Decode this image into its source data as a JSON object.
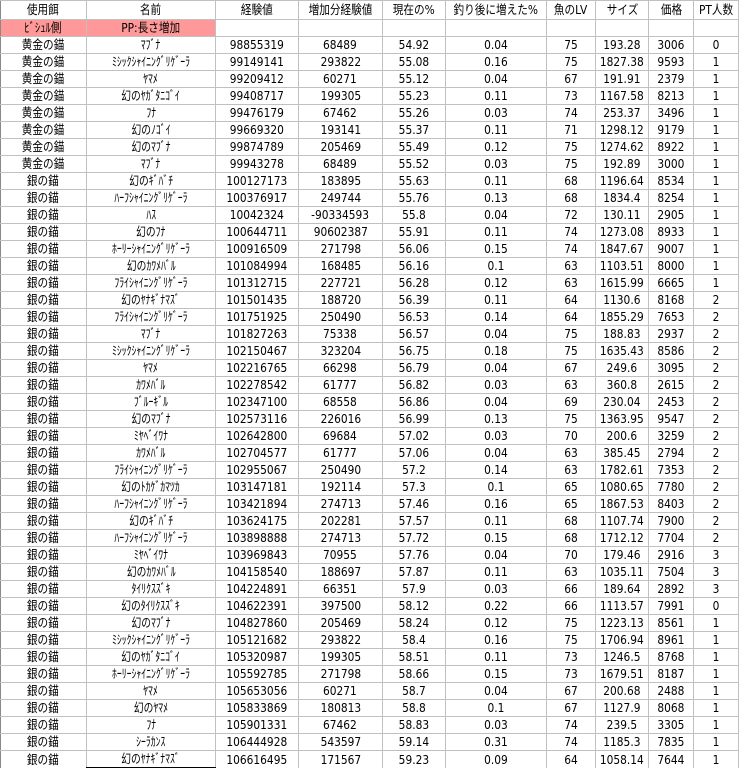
{
  "headers": [
    "使用餌",
    "名前",
    "経験値",
    "増加分経験値",
    "現在の%",
    "釣り後に増えた%",
    "魚のLV",
    "サイズ",
    "価格",
    "PT人数"
  ],
  "note_row": [
    "ﾋﾞｼｭﾙ側",
    "PP:長さ増加"
  ],
  "highlight_color": "#ff9999",
  "rows": [
    [
      "黄金の錨",
      "ﾏﾌﾞﾅ",
      "98855319",
      "68489",
      "54.92",
      "0.04",
      "75",
      "193.28",
      "3006",
      "0"
    ],
    [
      "黄金の錨",
      "ﾐｼｯｸｼｬｲﾆﾝｸﾞﾘｹﾞｰﾗ",
      "99149141",
      "293822",
      "55.08",
      "0.16",
      "75",
      "1827.38",
      "9593",
      "1"
    ],
    [
      "黄金の錨",
      "ﾔﾏﾒ",
      "99209412",
      "60271",
      "55.12",
      "0.04",
      "67",
      "191.91",
      "2379",
      "1"
    ],
    [
      "黄金の錨",
      "幻のﾔｶﾞﾀﾆｺﾞｲ",
      "99408717",
      "199305",
      "55.23",
      "0.11",
      "73",
      "1167.58",
      "8213",
      "1"
    ],
    [
      "黄金の錨",
      "ﾌﾅ",
      "99476179",
      "67462",
      "55.26",
      "0.03",
      "74",
      "253.37",
      "3496",
      "1"
    ],
    [
      "黄金の錨",
      "幻のﾉｺﾞｲ",
      "99669320",
      "193141",
      "55.37",
      "0.11",
      "71",
      "1298.12",
      "9179",
      "1"
    ],
    [
      "黄金の錨",
      "幻のﾏﾌﾞﾅ",
      "99874789",
      "205469",
      "55.49",
      "0.12",
      "75",
      "1274.62",
      "8922",
      "1"
    ],
    [
      "黄金の錨",
      "ﾏﾌﾞﾅ",
      "99943278",
      "68489",
      "55.52",
      "0.03",
      "75",
      "192.89",
      "3000",
      "1"
    ],
    [
      "銀の錨",
      "幻のｷﾞﾊﾞﾁ",
      "100127173",
      "183895",
      "55.63",
      "0.11",
      "68",
      "1196.64",
      "8534",
      "1"
    ],
    [
      "銀の錨",
      "ﾊｰﾌｼｬｲﾆﾝｸﾞﾘｹﾞｰﾗ",
      "100376917",
      "249744",
      "55.76",
      "0.13",
      "68",
      "1834.4",
      "8254",
      "1"
    ],
    [
      "銀の錨",
      "ﾊｽ",
      "10042324",
      "-90334593",
      "55.8",
      "0.04",
      "72",
      "130.11",
      "2905",
      "1"
    ],
    [
      "銀の錨",
      "幻のﾌﾅ",
      "100644711",
      "90602387",
      "55.91",
      "0.11",
      "74",
      "1273.08",
      "8933",
      "1"
    ],
    [
      "銀の錨",
      "ﾎｰﾘｰｼｬｲﾆﾝｸﾞﾘｹﾞｰﾗ",
      "100916509",
      "271798",
      "56.06",
      "0.15",
      "74",
      "1847.67",
      "9007",
      "1"
    ],
    [
      "銀の錨",
      "幻のｶﾜﾒﾊﾞﾙ",
      "101084994",
      "168485",
      "56.16",
      "0.1",
      "63",
      "1103.51",
      "8000",
      "1"
    ],
    [
      "銀の錨",
      "ﾌﾗｲｼｬｲﾆﾝｸﾞﾘｹﾞｰﾗ",
      "101312715",
      "227721",
      "56.28",
      "0.12",
      "63",
      "1615.99",
      "6665",
      "1"
    ],
    [
      "銀の錨",
      "幻のﾔﾅｷﾞﾅﾏｽﾞ",
      "101501435",
      "188720",
      "56.39",
      "0.11",
      "64",
      "1130.6",
      "8168",
      "2"
    ],
    [
      "銀の錨",
      "ﾌﾗｲｼｬｲﾆﾝｸﾞﾘｹﾞｰﾗ",
      "101751925",
      "250490",
      "56.53",
      "0.14",
      "64",
      "1855.29",
      "7653",
      "2"
    ],
    [
      "銀の錨",
      "ﾏﾌﾞﾅ",
      "101827263",
      "75338",
      "56.57",
      "0.04",
      "75",
      "188.83",
      "2937",
      "2"
    ],
    [
      "銀の錨",
      "ﾐｼｯｸｼｬｲﾆﾝｸﾞﾘｹﾞｰﾗ",
      "102150467",
      "323204",
      "56.75",
      "0.18",
      "75",
      "1635.43",
      "8586",
      "2"
    ],
    [
      "銀の錨",
      "ﾔﾏﾒ",
      "102216765",
      "66298",
      "56.79",
      "0.04",
      "67",
      "249.6",
      "3095",
      "2"
    ],
    [
      "銀の錨",
      "ｶﾜﾒﾊﾞﾙ",
      "102278542",
      "61777",
      "56.82",
      "0.03",
      "63",
      "360.8",
      "2615",
      "2"
    ],
    [
      "銀の錨",
      "ﾌﾞﾙｰｷﾞﾙ",
      "102347100",
      "68558",
      "56.86",
      "0.04",
      "69",
      "230.04",
      "2453",
      "2"
    ],
    [
      "銀の錨",
      "幻のﾏﾌﾞﾅ",
      "102573116",
      "226016",
      "56.99",
      "0.13",
      "75",
      "1363.95",
      "9547",
      "2"
    ],
    [
      "銀の錨",
      "ﾐﾔﾍﾞｲﾜﾅ",
      "102642800",
      "69684",
      "57.02",
      "0.03",
      "70",
      "200.6",
      "3259",
      "2"
    ],
    [
      "銀の錨",
      "ｶﾜﾒﾊﾞﾙ",
      "102704577",
      "61777",
      "57.06",
      "0.04",
      "63",
      "385.45",
      "2794",
      "2"
    ],
    [
      "銀の錨",
      "ﾌﾗｲｼｬｲﾆﾝｸﾞﾘｹﾞｰﾗ",
      "102955067",
      "250490",
      "57.2",
      "0.14",
      "63",
      "1782.61",
      "7353",
      "2"
    ],
    [
      "銀の錨",
      "幻のﾄｶｹﾞｶﾏﾂｶ",
      "103147181",
      "192114",
      "57.3",
      "0.1",
      "65",
      "1080.65",
      "7780",
      "2"
    ],
    [
      "銀の錨",
      "ﾊｰﾌｼｬｲﾆﾝｸﾞﾘｹﾞｰﾗ",
      "103421894",
      "274713",
      "57.46",
      "0.16",
      "65",
      "1867.53",
      "8403",
      "2"
    ],
    [
      "銀の錨",
      "幻のｷﾞﾊﾞﾁ",
      "103624175",
      "202281",
      "57.57",
      "0.11",
      "68",
      "1107.74",
      "7900",
      "2"
    ],
    [
      "銀の錨",
      "ﾊｰﾌｼｬｲﾆﾝｸﾞﾘｹﾞｰﾗ",
      "103898888",
      "274713",
      "57.72",
      "0.15",
      "68",
      "1712.12",
      "7704",
      "2"
    ],
    [
      "銀の錨",
      "ﾐﾔﾍﾞｲﾜﾅ",
      "103969843",
      "70955",
      "57.76",
      "0.04",
      "70",
      "179.46",
      "2916",
      "3"
    ],
    [
      "銀の錨",
      "幻のｶﾜﾒﾊﾞﾙ",
      "104158540",
      "188697",
      "57.87",
      "0.11",
      "63",
      "1035.11",
      "7504",
      "3"
    ],
    [
      "銀の錨",
      "ﾀｲﾘｸｽｽﾞｷ",
      "104224891",
      "66351",
      "57.9",
      "0.03",
      "66",
      "189.64",
      "2892",
      "3"
    ],
    [
      "銀の錨",
      "幻のﾀｲﾘｸｽｽﾞｷ",
      "104622391",
      "397500",
      "58.12",
      "0.22",
      "66",
      "1113.57",
      "7991",
      "0"
    ],
    [
      "銀の錨",
      "幻のﾏﾌﾞﾅ",
      "104827860",
      "205469",
      "58.24",
      "0.12",
      "75",
      "1223.13",
      "8561",
      "1"
    ],
    [
      "銀の錨",
      "ﾐｼｯｸｼｬｲﾆﾝｸﾞﾘｹﾞｰﾗ",
      "105121682",
      "293822",
      "58.4",
      "0.16",
      "75",
      "1706.94",
      "8961",
      "1"
    ],
    [
      "銀の錨",
      "幻のﾔｶﾞﾀﾆｺﾞｲ",
      "105320987",
      "199305",
      "58.51",
      "0.11",
      "73",
      "1246.5",
      "8768",
      "1"
    ],
    [
      "銀の錨",
      "ﾎｰﾘｰｼｬｲﾆﾝｸﾞﾘｹﾞｰﾗ",
      "105592785",
      "271798",
      "58.66",
      "0.15",
      "73",
      "1679.51",
      "8187",
      "1"
    ],
    [
      "銀の錨",
      "ﾔﾏﾒ",
      "105653056",
      "60271",
      "58.7",
      "0.04",
      "67",
      "200.68",
      "2488",
      "1"
    ],
    [
      "銀の錨",
      "幻のﾔﾏﾒ",
      "105833869",
      "180813",
      "58.8",
      "0.1",
      "67",
      "1127.9",
      "8068",
      "1"
    ],
    [
      "銀の錨",
      "ﾌﾅ",
      "105901331",
      "67462",
      "58.83",
      "0.03",
      "74",
      "239.5",
      "3305",
      "1"
    ],
    [
      "銀の錨",
      "ｼｰﾗｶﾝｽ",
      "106444928",
      "543597",
      "59.14",
      "0.31",
      "74",
      "1185.3",
      "7835",
      "1"
    ],
    [
      "銀の錨",
      "幻のﾔﾅｷﾞﾅﾏｽﾞ",
      "106616495",
      "171567",
      "59.23",
      "0.09",
      "64",
      "1058.14",
      "7644",
      "1"
    ]
  ]
}
